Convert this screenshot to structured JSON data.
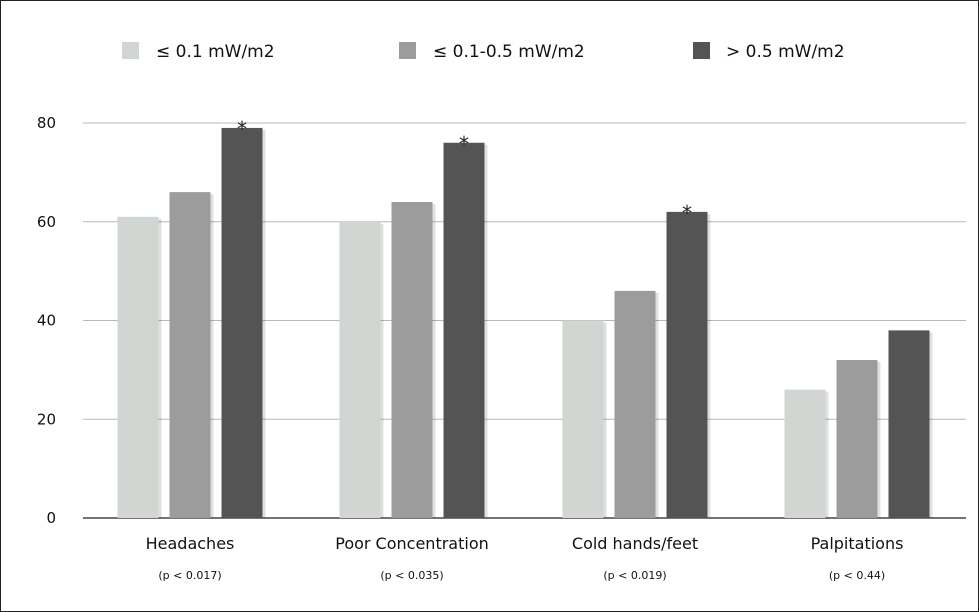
{
  "chart_data": {
    "type": "bar",
    "categories": [
      "Headaches",
      "Poor Concentration",
      "Cold hands/feet",
      "Palpitations"
    ],
    "category_notes": [
      "(p < 0.017)",
      "(p < 0.035)",
      "(p < 0.019)",
      "(p < 0.44)"
    ],
    "series": [
      {
        "name": "≤ 0.1 mW/m2",
        "color": "#d2d6d2",
        "values": [
          61,
          60,
          40,
          26
        ]
      },
      {
        "name": "≤ 0.1-0.5 mW/m2",
        "color": "#9c9c9c",
        "values": [
          66,
          64,
          46,
          32
        ]
      },
      {
        "name": "> 0.5 mW/m2",
        "color": "#545454",
        "values": [
          79,
          76,
          62,
          38
        ]
      }
    ],
    "significance_markers": [
      {
        "category_index": 0,
        "series_index": 2,
        "text": "*"
      },
      {
        "category_index": 1,
        "series_index": 2,
        "text": "*"
      },
      {
        "category_index": 2,
        "series_index": 2,
        "text": "*"
      }
    ],
    "yticks": [
      0,
      20,
      40,
      60,
      80
    ],
    "ylim": [
      0,
      80
    ],
    "grid": true,
    "legend_position": "top"
  }
}
